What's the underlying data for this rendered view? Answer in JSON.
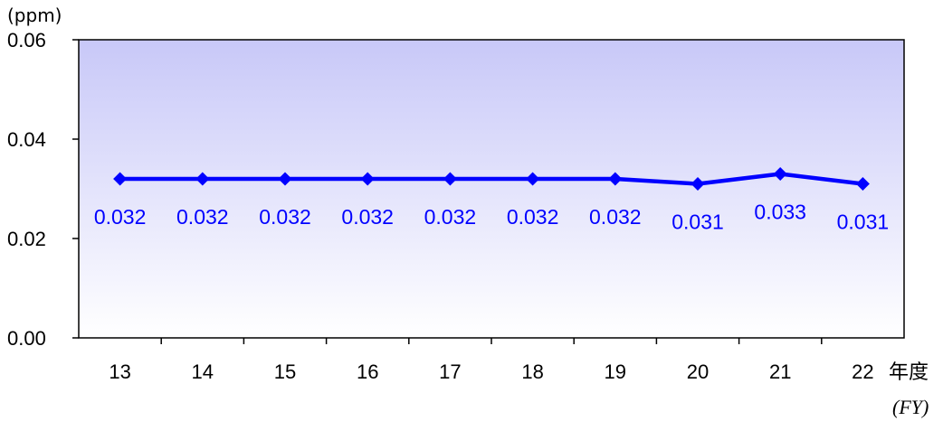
{
  "chart_data": {
    "type": "line",
    "title": "",
    "y_unit": "(ppm)",
    "xlabel": "年度",
    "xlabel_sub": "(FY)",
    "categories": [
      "13",
      "14",
      "15",
      "16",
      "17",
      "18",
      "19",
      "20",
      "21",
      "22"
    ],
    "ylim": [
      0,
      0.06
    ],
    "yticks": [
      "0.00",
      "0.02",
      "0.04",
      "0.06"
    ],
    "series": [
      {
        "values": [
          0.032,
          0.032,
          0.032,
          0.032,
          0.032,
          0.032,
          0.032,
          0.031,
          0.033,
          0.031
        ],
        "labels": [
          "0.032",
          "0.032",
          "0.032",
          "0.032",
          "0.032",
          "0.032",
          "0.032",
          "0.031",
          "0.033",
          "0.031"
        ],
        "color": "#0000ff"
      }
    ],
    "plot_background_gradient": [
      "#c8c8f8",
      "#ffffff"
    ],
    "grid": false,
    "legend": "none"
  }
}
